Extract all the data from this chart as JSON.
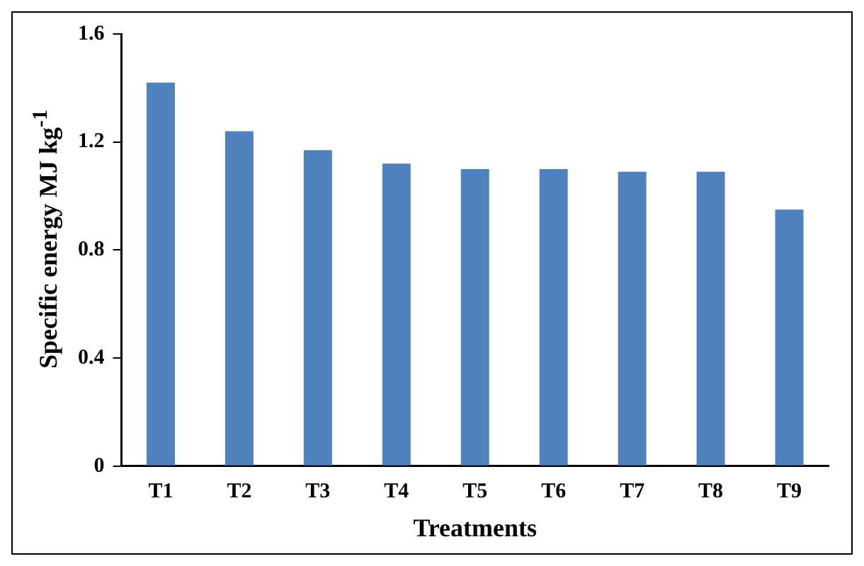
{
  "chart_data": {
    "type": "bar",
    "xlabel": "Treatments",
    "ylabel": "Specific energy MJ kg$^{-1}$",
    "categories": [
      "T1",
      "T2",
      "T3",
      "T4",
      "T5",
      "T6",
      "T7",
      "T8",
      "T9"
    ],
    "values": [
      1.42,
      1.24,
      1.17,
      1.12,
      1.1,
      1.1,
      1.09,
      1.09,
      0.95
    ],
    "color": "#4f81bd",
    "ylim": [
      0,
      1.6
    ],
    "yticks": [
      0,
      0.4,
      0.8,
      1.2,
      1.6
    ],
    "grid": false,
    "legend": false
  }
}
